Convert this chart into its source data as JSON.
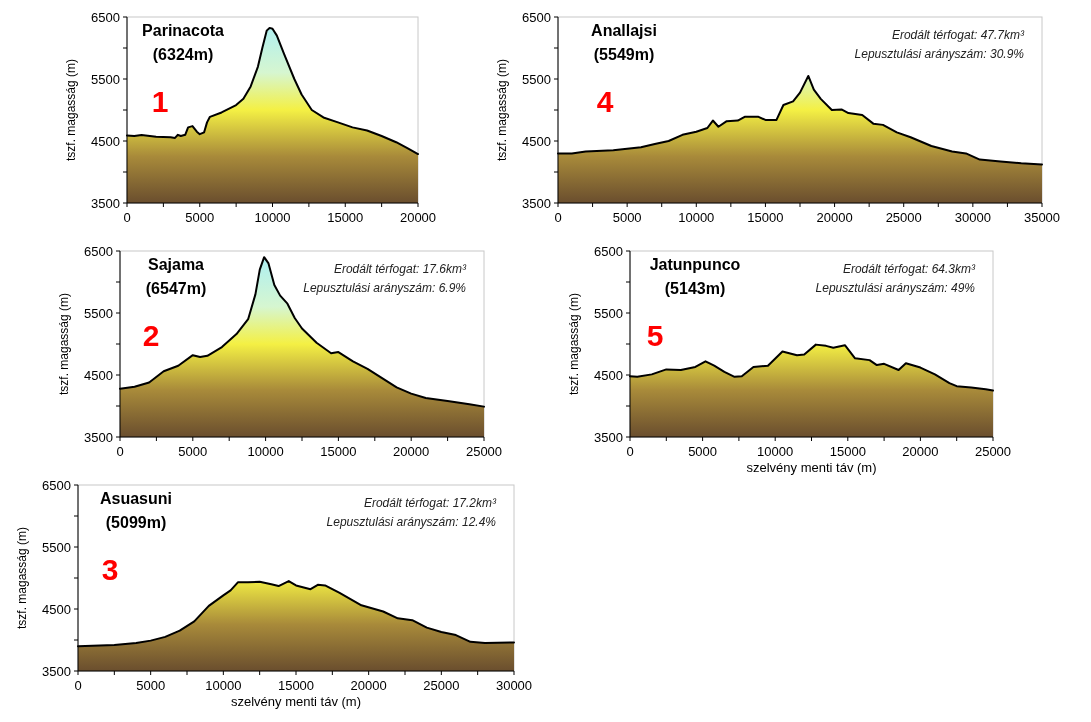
{
  "chart_data": [
    {
      "type": "area",
      "title": "Parinacota",
      "subtitle": "(6324m)",
      "ylabel": "tszf. magasság (m)",
      "annotations": [
        "1"
      ],
      "xlim": [
        0,
        20000
      ],
      "ylim": [
        3500,
        6500
      ],
      "xticks": [
        0,
        {
          "value": 2500,
          "label": null
        },
        5000,
        {
          "value": 7500,
          "label": null
        },
        10000,
        {
          "value": 12500,
          "label": null
        },
        15000,
        {
          "value": 17500,
          "label": null
        },
        20000
      ],
      "yticks": [
        3500,
        {
          "value": 4000,
          "label": null
        },
        4500,
        {
          "value": 5000,
          "label": null
        },
        5500,
        {
          "value": 6000,
          "label": null
        },
        6500
      ],
      "x": [
        0,
        500,
        1000,
        2000,
        3000,
        3300,
        3500,
        3700,
        4000,
        4200,
        4500,
        4800,
        5000,
        5300,
        5500,
        5700,
        6500,
        7500,
        8000,
        8500,
        9000,
        9300,
        9600,
        9800,
        10000,
        10300,
        10800,
        11500,
        12000,
        12700,
        13500,
        14500,
        15500,
        16500,
        17500,
        18500,
        19300,
        20000
      ],
      "series": [
        {
          "color": "#000000",
          "values": [
            4590,
            4580,
            4595,
            4570,
            4560,
            4550,
            4600,
            4580,
            4600,
            4720,
            4740,
            4650,
            4610,
            4640,
            4800,
            4890,
            4960,
            5080,
            5180,
            5380,
            5700,
            6000,
            6280,
            6324,
            6310,
            6200,
            5900,
            5500,
            5250,
            5000,
            4880,
            4800,
            4720,
            4670,
            4580,
            4480,
            4380,
            4290
          ]
        }
      ]
    },
    {
      "type": "area",
      "title": "Anallajsi",
      "subtitle": "(5549m)",
      "ylabel": "tszf. magasság (m)",
      "annotations": [
        "4",
        "Erodált térfogat: 47.7km³",
        "Lepusztulási arányszám: 30.9%"
      ],
      "xlim": [
        0,
        35000
      ],
      "ylim": [
        3500,
        6500
      ],
      "xticks": [
        0,
        {
          "value": 2500,
          "label": null
        },
        5000,
        {
          "value": 7500,
          "label": null
        },
        10000,
        {
          "value": 12500,
          "label": null
        },
        15000,
        {
          "value": 17500,
          "label": null
        },
        20000,
        {
          "value": 22500,
          "label": null
        },
        25000,
        {
          "value": 27500,
          "label": null
        },
        30000,
        {
          "value": 32500,
          "label": null
        },
        35000
      ],
      "yticks": [
        3500,
        {
          "value": 4000,
          "label": null
        },
        4500,
        {
          "value": 5000,
          "label": null
        },
        5500,
        {
          "value": 6000,
          "label": null
        },
        6500
      ],
      "x": [
        0,
        1000,
        2000,
        4000,
        6000,
        7000,
        8000,
        9000,
        10000,
        10800,
        11200,
        11600,
        12200,
        13000,
        13500,
        14500,
        15000,
        15800,
        16300,
        17000,
        17500,
        18100,
        18500,
        19000,
        19800,
        20500,
        21000,
        22000,
        22800,
        23500,
        24500,
        25500,
        27000,
        28500,
        29500,
        30500,
        32000,
        33500,
        35000
      ],
      "series": [
        {
          "color": "#000000",
          "values": [
            4300,
            4300,
            4330,
            4350,
            4400,
            4450,
            4500,
            4600,
            4650,
            4710,
            4830,
            4730,
            4820,
            4830,
            4890,
            4890,
            4840,
            4840,
            5080,
            5140,
            5280,
            5549,
            5330,
            5180,
            5000,
            5010,
            4950,
            4920,
            4780,
            4760,
            4640,
            4560,
            4420,
            4330,
            4300,
            4200,
            4170,
            4140,
            4120
          ]
        }
      ]
    },
    {
      "type": "area",
      "title": "Sajama",
      "subtitle": "(6547m)",
      "ylabel": "tszf. magasság (m)",
      "annotations": [
        "2",
        "Erodált térfogat: 17.6km³",
        "Lepusztulási arányszám: 6.9%"
      ],
      "xlim": [
        0,
        25000
      ],
      "ylim": [
        3500,
        6500
      ],
      "xticks": [
        0,
        {
          "value": 2500,
          "label": null
        },
        5000,
        {
          "value": 7500,
          "label": null
        },
        10000,
        {
          "value": 12500,
          "label": null
        },
        15000,
        {
          "value": 17500,
          "label": null
        },
        20000,
        {
          "value": 22500,
          "label": null
        },
        25000
      ],
      "yticks": [
        3500,
        {
          "value": 4000,
          "label": null
        },
        4500,
        {
          "value": 5000,
          "label": null
        },
        5500,
        {
          "value": 6000,
          "label": null
        },
        6500
      ],
      "x": [
        0,
        1000,
        2000,
        3000,
        4000,
        5000,
        5500,
        6000,
        7000,
        8000,
        8800,
        9300,
        9600,
        9900,
        10200,
        10600,
        11000,
        11500,
        12000,
        12500,
        13500,
        14500,
        15000,
        16000,
        17000,
        18000,
        19000,
        20000,
        21000,
        22500,
        24000,
        25000
      ],
      "series": [
        {
          "color": "#000000",
          "values": [
            4280,
            4310,
            4380,
            4560,
            4650,
            4820,
            4790,
            4810,
            4950,
            5160,
            5400,
            5800,
            6200,
            6400,
            6300,
            5950,
            5780,
            5650,
            5420,
            5250,
            5020,
            4850,
            4870,
            4720,
            4600,
            4450,
            4300,
            4200,
            4130,
            4080,
            4030,
            3990
          ]
        }
      ]
    },
    {
      "type": "area",
      "title": "Jatunpunco",
      "subtitle": "(5143m)",
      "ylabel": "tszf. magasság (m)",
      "xlabel": "szelvény menti táv (m)",
      "annotations": [
        "5",
        "Erodált térfogat: 64.3km³",
        "Lepusztulási arányszám: 49%"
      ],
      "xlim": [
        0,
        25000
      ],
      "ylim": [
        3500,
        6500
      ],
      "xticks": [
        0,
        {
          "value": 2500,
          "label": null
        },
        5000,
        {
          "value": 7500,
          "label": null
        },
        10000,
        {
          "value": 12500,
          "label": null
        },
        15000,
        {
          "value": 17500,
          "label": null
        },
        20000,
        {
          "value": 22500,
          "label": null
        },
        25000
      ],
      "yticks": [
        3500,
        {
          "value": 4000,
          "label": null
        },
        4500,
        {
          "value": 5000,
          "label": null
        },
        5500,
        {
          "value": 6000,
          "label": null
        },
        6500
      ],
      "x": [
        0,
        500,
        1500,
        2500,
        3500,
        4500,
        5200,
        5800,
        6500,
        7200,
        7700,
        8500,
        9500,
        10500,
        11500,
        12000,
        12800,
        13500,
        14000,
        14800,
        15500,
        16500,
        17000,
        17500,
        18500,
        19000,
        20000,
        21000,
        22000,
        22500,
        23500,
        24500,
        25000
      ],
      "series": [
        {
          "color": "#000000",
          "values": [
            4480,
            4470,
            4510,
            4590,
            4580,
            4630,
            4720,
            4650,
            4550,
            4470,
            4480,
            4630,
            4650,
            4880,
            4820,
            4830,
            4990,
            4970,
            4940,
            4980,
            4770,
            4740,
            4660,
            4680,
            4580,
            4690,
            4620,
            4510,
            4370,
            4320,
            4300,
            4270,
            4250
          ]
        }
      ]
    },
    {
      "type": "area",
      "title": "Asuasuni",
      "subtitle": "(5099m)",
      "ylabel": "tszf. magasság (m)",
      "xlabel": "szelvény menti táv (m)",
      "annotations": [
        "3",
        "Erodált térfogat: 17.2km³",
        "Lepusztulási arányszám: 12.4%"
      ],
      "xlim": [
        0,
        30000
      ],
      "ylim": [
        3500,
        6500
      ],
      "xticks": [
        0,
        {
          "value": 2500,
          "label": null
        },
        5000,
        {
          "value": 7500,
          "label": null
        },
        10000,
        {
          "value": 12500,
          "label": null
        },
        15000,
        {
          "value": 17500,
          "label": null
        },
        20000,
        {
          "value": 22500,
          "label": null
        },
        25000,
        {
          "value": 27500,
          "label": null
        },
        30000
      ],
      "yticks": [
        3500,
        {
          "value": 4000,
          "label": null
        },
        4500,
        {
          "value": 5000,
          "label": null
        },
        5500,
        {
          "value": 6000,
          "label": null
        },
        6500
      ],
      "x": [
        0,
        2500,
        4000,
        5000,
        6000,
        7000,
        8000,
        9000,
        10000,
        10500,
        11000,
        11700,
        12500,
        13300,
        13800,
        14500,
        15000,
        16000,
        16500,
        17000,
        18000,
        19500,
        21000,
        22000,
        23000,
        24000,
        25000,
        26000,
        27000,
        28000,
        30000
      ],
      "series": [
        {
          "color": "#000000",
          "values": [
            3900,
            3920,
            3950,
            3990,
            4050,
            4150,
            4300,
            4550,
            4720,
            4800,
            4930,
            4930,
            4940,
            4900,
            4870,
            4950,
            4880,
            4820,
            4890,
            4880,
            4760,
            4560,
            4460,
            4350,
            4320,
            4200,
            4130,
            4080,
            3970,
            3950,
            3960
          ]
        }
      ]
    }
  ]
}
